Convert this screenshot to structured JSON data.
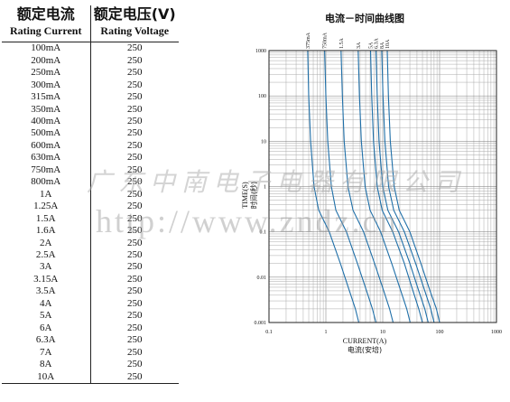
{
  "table": {
    "col1_cn": "额定电流",
    "col1_en": "Rating Current",
    "col2_cn": "额定电压(V)",
    "col2_en": "Rating Voltage",
    "rows": [
      {
        "current": "100mA",
        "voltage": "250"
      },
      {
        "current": "200mA",
        "voltage": "250"
      },
      {
        "current": "250mA",
        "voltage": "250"
      },
      {
        "current": "300mA",
        "voltage": "250"
      },
      {
        "current": "315mA",
        "voltage": "250"
      },
      {
        "current": "350mA",
        "voltage": "250"
      },
      {
        "current": "400mA",
        "voltage": "250"
      },
      {
        "current": "500mA",
        "voltage": "250"
      },
      {
        "current": "600mA",
        "voltage": "250"
      },
      {
        "current": "630mA",
        "voltage": "250"
      },
      {
        "current": "750mA",
        "voltage": "250"
      },
      {
        "current": "800mA",
        "voltage": "250"
      },
      {
        "current": "1A",
        "voltage": "250"
      },
      {
        "current": "1.25A",
        "voltage": "250"
      },
      {
        "current": "1.5A",
        "voltage": "250"
      },
      {
        "current": "1.6A",
        "voltage": "250"
      },
      {
        "current": "2A",
        "voltage": "250"
      },
      {
        "current": "2.5A",
        "voltage": "250"
      },
      {
        "current": "3A",
        "voltage": "250"
      },
      {
        "current": "3.15A",
        "voltage": "250"
      },
      {
        "current": "3.5A",
        "voltage": "250"
      },
      {
        "current": "4A",
        "voltage": "250"
      },
      {
        "current": "5A",
        "voltage": "250"
      },
      {
        "current": "6A",
        "voltage": "250"
      },
      {
        "current": "6.3A",
        "voltage": "250"
      },
      {
        "current": "7A",
        "voltage": "250"
      },
      {
        "current": "8A",
        "voltage": "250"
      },
      {
        "current": "10A",
        "voltage": "250"
      }
    ]
  },
  "watermark": {
    "company": "广东中南电子电器有限公司",
    "url": "http://www.zndz.cn"
  },
  "chart_data": {
    "type": "line",
    "title": "电流－时间曲线图",
    "xlabel_en": "CURRENT(A)",
    "xlabel_cn": "电流(安培)",
    "ylabel_en": "TIME(S)",
    "ylabel_cn": "时间(秒)",
    "x_scale": "log",
    "y_scale": "log",
    "xlim": [
      0.1,
      1000
    ],
    "ylim": [
      0.001,
      1000
    ],
    "x_ticks": [
      "0.1",
      "1",
      "10",
      "100",
      "1000"
    ],
    "y_ticks": [
      "0.001",
      "0.01",
      "0.1",
      "1",
      "10",
      "100",
      "1000"
    ],
    "grid": true,
    "line_color": "#1f6fa8",
    "series": [
      {
        "name": "375mA",
        "points": [
          [
            0.48,
            1000
          ],
          [
            0.5,
            100
          ],
          [
            0.54,
            10
          ],
          [
            0.62,
            1
          ],
          [
            0.75,
            0.3
          ],
          [
            1.15,
            0.1
          ],
          [
            1.8,
            0.02
          ],
          [
            2.6,
            0.005
          ],
          [
            3.3,
            0.002
          ],
          [
            3.8,
            0.001
          ]
        ]
      },
      {
        "name": "750mA",
        "points": [
          [
            0.95,
            1000
          ],
          [
            1.0,
            100
          ],
          [
            1.08,
            10
          ],
          [
            1.25,
            1
          ],
          [
            1.5,
            0.3
          ],
          [
            2.3,
            0.1
          ],
          [
            3.6,
            0.02
          ],
          [
            5.2,
            0.005
          ],
          [
            6.6,
            0.002
          ],
          [
            7.6,
            0.001
          ]
        ]
      },
      {
        "name": "1.5A",
        "points": [
          [
            1.85,
            1000
          ],
          [
            1.95,
            100
          ],
          [
            2.1,
            10
          ],
          [
            2.45,
            1
          ],
          [
            3.0,
            0.3
          ],
          [
            4.6,
            0.1
          ],
          [
            7.2,
            0.02
          ],
          [
            10.4,
            0.005
          ],
          [
            13.2,
            0.002
          ],
          [
            15.2,
            0.001
          ]
        ]
      },
      {
        "name": "3A",
        "points": [
          [
            3.7,
            1000
          ],
          [
            3.9,
            100
          ],
          [
            4.2,
            10
          ],
          [
            4.9,
            1
          ],
          [
            6.0,
            0.3
          ],
          [
            9.2,
            0.1
          ],
          [
            14.4,
            0.02
          ],
          [
            20.8,
            0.005
          ],
          [
            26.4,
            0.002
          ],
          [
            30.4,
            0.001
          ]
        ]
      },
      {
        "name": "5A",
        "points": [
          [
            6.1,
            1000
          ],
          [
            6.4,
            100
          ],
          [
            6.9,
            10
          ],
          [
            8.0,
            1
          ],
          [
            9.8,
            0.3
          ],
          [
            15,
            0.1
          ],
          [
            24,
            0.02
          ],
          [
            34,
            0.005
          ],
          [
            43,
            0.002
          ],
          [
            50,
            0.001
          ]
        ]
      },
      {
        "name": "6.3A",
        "points": [
          [
            7.6,
            1000
          ],
          [
            8.0,
            100
          ],
          [
            8.6,
            10
          ],
          [
            10,
            1
          ],
          [
            12.3,
            0.3
          ],
          [
            19,
            0.1
          ],
          [
            30,
            0.02
          ],
          [
            43,
            0.005
          ],
          [
            55,
            0.002
          ],
          [
            63,
            0.001
          ]
        ]
      },
      {
        "name": "8A",
        "points": [
          [
            9.6,
            1000
          ],
          [
            10.1,
            100
          ],
          [
            10.9,
            10
          ],
          [
            12.7,
            1
          ],
          [
            15.6,
            0.3
          ],
          [
            24,
            0.1
          ],
          [
            38,
            0.02
          ],
          [
            55,
            0.005
          ],
          [
            70,
            0.002
          ],
          [
            80,
            0.001
          ]
        ]
      },
      {
        "name": "10A",
        "points": [
          [
            12,
            1000
          ],
          [
            12.6,
            100
          ],
          [
            13.6,
            10
          ],
          [
            15.9,
            1
          ],
          [
            19.5,
            0.3
          ],
          [
            30,
            0.1
          ],
          [
            47,
            0.02
          ],
          [
            68,
            0.005
          ],
          [
            88,
            0.002
          ],
          [
            100,
            0.001
          ]
        ]
      }
    ]
  }
}
